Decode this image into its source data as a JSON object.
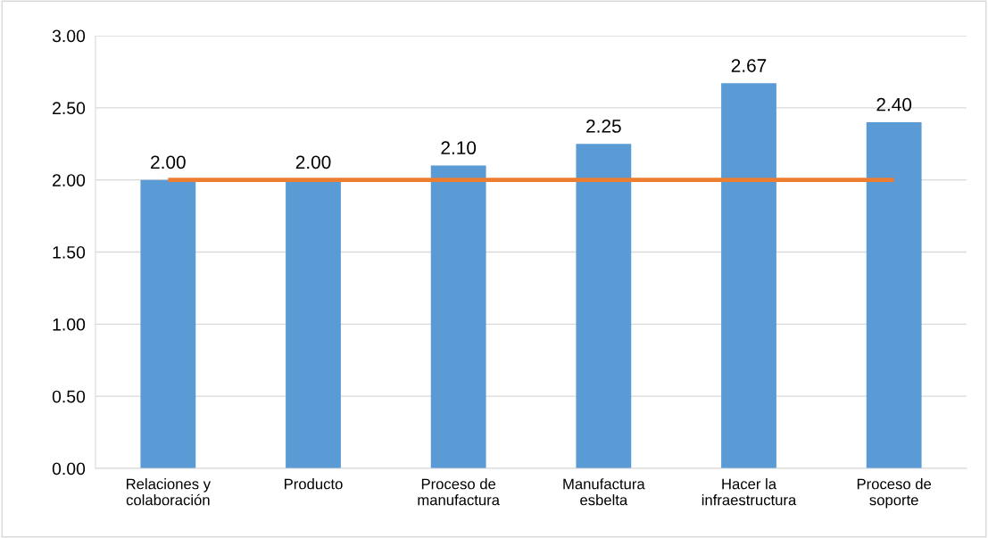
{
  "chart_data": {
    "type": "bar",
    "categories": [
      "Relaciones y\ncolaboración",
      "Producto",
      "Proceso de\nmanufactura",
      "Manufactura\nesbelta",
      "Hacer la\ninfraestructura",
      "Proceso de\nsoporte"
    ],
    "series": [
      {
        "color": "#5b9bd5",
        "values": [
          2.0,
          2.0,
          2.1,
          2.25,
          2.67,
          2.4
        ],
        "value_labels": [
          "2.00",
          "2.00",
          "2.10",
          "2.25",
          "2.67",
          "2.40"
        ]
      },
      {
        "type": "line",
        "color": "#ed7d31",
        "values": [
          2.0,
          2.0,
          2.0,
          2.0,
          2.0,
          2.0
        ]
      }
    ],
    "ylim": [
      0,
      3
    ],
    "yticks": [
      {
        "value": 0,
        "label": "0.00"
      },
      {
        "value": 0.5,
        "label": "0.50"
      },
      {
        "value": 1,
        "label": "1.00"
      },
      {
        "value": 1.5,
        "label": "1.50"
      },
      {
        "value": 2,
        "label": "2.00"
      },
      {
        "value": 2.5,
        "label": "2.50"
      },
      {
        "value": 3,
        "label": "3.00"
      }
    ],
    "grid": "y"
  }
}
